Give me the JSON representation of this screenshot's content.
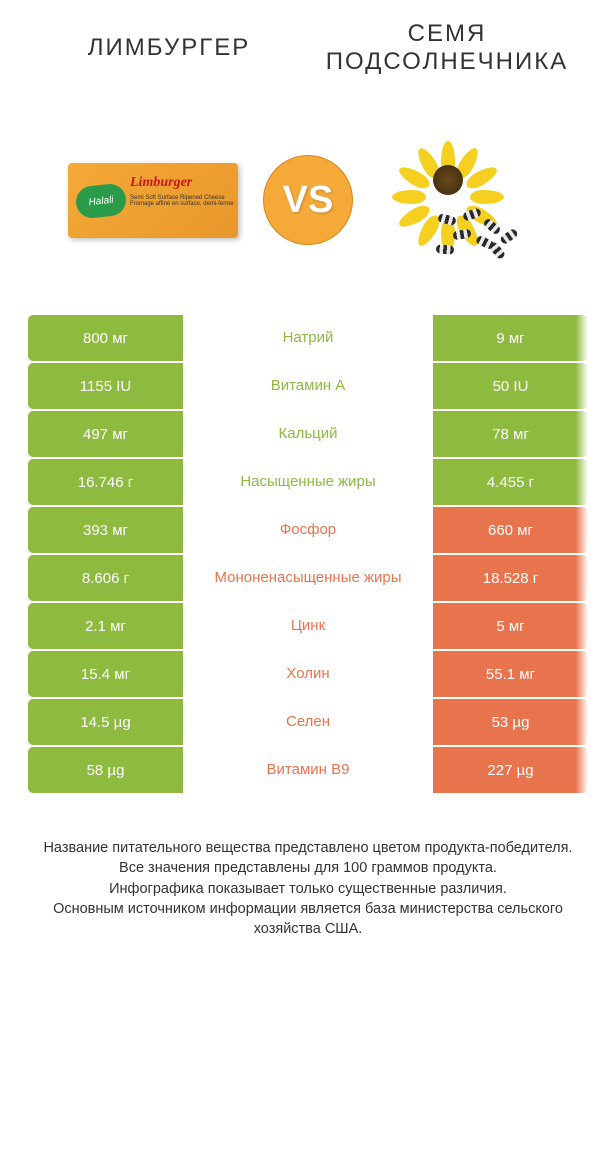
{
  "header": {
    "left_title": "ЛИМБУРГЕР",
    "right_title": "СЕМЯ ПОДСОЛНЕЧНИКА",
    "vs_label": "VS",
    "cheese_brand": "Halali",
    "cheese_name": "Limburger",
    "cheese_sub1": "Semi Soft Surface Ripened Cheese",
    "cheese_sub2": "Fromage affiné en surface, demi-ferme"
  },
  "colors": {
    "green": "#8dba3f",
    "orange": "#e8744e",
    "vs_badge": "#f4a938",
    "text": "#333333"
  },
  "rows": [
    {
      "left": "800 мг",
      "label": "Натрий",
      "right": "9 мг",
      "winner": "left"
    },
    {
      "left": "1155 IU",
      "label": "Витамин A",
      "right": "50 IU",
      "winner": "left"
    },
    {
      "left": "497 мг",
      "label": "Кальций",
      "right": "78 мг",
      "winner": "left"
    },
    {
      "left": "16.746 г",
      "label": "Насыщенные жиры",
      "right": "4.455 г",
      "winner": "left"
    },
    {
      "left": "393 мг",
      "label": "Фосфор",
      "right": "660 мг",
      "winner": "right"
    },
    {
      "left": "8.606 г",
      "label": "Мононенасыщенные жиры",
      "right": "18.528 г",
      "winner": "right"
    },
    {
      "left": "2.1 мг",
      "label": "Цинк",
      "right": "5 мг",
      "winner": "right"
    },
    {
      "left": "15.4 мг",
      "label": "Холин",
      "right": "55.1 мг",
      "winner": "right"
    },
    {
      "left": "14.5 µg",
      "label": "Селен",
      "right": "53 µg",
      "winner": "right"
    },
    {
      "left": "58 µg",
      "label": "Витамин B9",
      "right": "227 µg",
      "winner": "right"
    }
  ],
  "footer": {
    "line1": "Название питательного вещества представлено цветом продукта-победителя.",
    "line2": "Все значения представлены для 100 граммов продукта.",
    "line3": "Инфографика показывает только существенные различия.",
    "line4": "Основным источником информации является база министерства сельского хозяйства США."
  }
}
